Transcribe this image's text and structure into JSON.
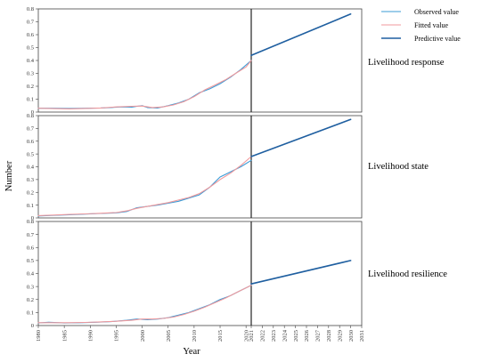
{
  "chart_data": {
    "type": "line",
    "xlabel": "Year",
    "ylabel": "Number",
    "ylim": [
      0,
      0.8
    ],
    "yticks": [
      "0",
      "0.1",
      "0.2",
      "0.3",
      "0.4",
      "0.5",
      "0.6",
      "0.7",
      "0.8"
    ],
    "xticks": [
      "1980",
      "1985",
      "1990",
      "1995",
      "2000",
      "2005",
      "2010",
      "2015",
      "2020",
      "2021",
      "2022",
      "2023",
      "2024",
      "2025",
      "2026",
      "2027",
      "2028",
      "2029",
      "2030",
      "2031"
    ],
    "legend": [
      "Observed value",
      "Fitted value",
      "Predictive value"
    ],
    "colors": {
      "observed": "#3b9bd6",
      "fitted": "#f0999c",
      "predictive": "#1f5fa0"
    },
    "panels": [
      {
        "label": "Livelihood response",
        "observed": {
          "x": [
            1980,
            1983,
            1986,
            1989,
            1992,
            1994,
            1996,
            1998,
            1999,
            2000,
            2001,
            2003,
            2005,
            2007,
            2009,
            2011,
            2013,
            2015,
            2017,
            2019,
            2021
          ],
          "y": [
            0.03,
            0.03,
            0.028,
            0.03,
            0.032,
            0.035,
            0.04,
            0.038,
            0.045,
            0.05,
            0.035,
            0.032,
            0.05,
            0.07,
            0.1,
            0.15,
            0.18,
            0.22,
            0.27,
            0.33,
            0.4
          ]
        },
        "fitted": {
          "x": [
            1980,
            1983,
            1986,
            1989,
            1992,
            1995,
            1998,
            2000,
            2002,
            2004,
            2006,
            2008,
            2010,
            2012,
            2014,
            2016,
            2018,
            2020,
            2021
          ],
          "y": [
            0.03,
            0.027,
            0.025,
            0.028,
            0.032,
            0.04,
            0.045,
            0.047,
            0.035,
            0.04,
            0.055,
            0.08,
            0.12,
            0.17,
            0.21,
            0.25,
            0.3,
            0.35,
            0.4
          ]
        },
        "predictive": {
          "x": [
            2021,
            2030
          ],
          "y": [
            0.44,
            0.76
          ]
        }
      },
      {
        "label": "Livelihood state",
        "observed": {
          "x": [
            1980,
            1983,
            1986,
            1989,
            1992,
            1995,
            1997,
            1999,
            2001,
            2003,
            2005,
            2007,
            2009,
            2011,
            2013,
            2015,
            2017,
            2019,
            2021
          ],
          "y": [
            0.015,
            0.02,
            0.025,
            0.03,
            0.035,
            0.04,
            0.05,
            0.08,
            0.09,
            0.1,
            0.115,
            0.13,
            0.155,
            0.18,
            0.24,
            0.32,
            0.36,
            0.4,
            0.45
          ]
        },
        "fitted": {
          "x": [
            1980,
            1983,
            1986,
            1989,
            1992,
            1995,
            1997,
            1999,
            2001,
            2003,
            2005,
            2007,
            2009,
            2011,
            2013,
            2015,
            2017,
            2019,
            2021
          ],
          "y": [
            0.018,
            0.022,
            0.027,
            0.031,
            0.036,
            0.042,
            0.055,
            0.075,
            0.09,
            0.105,
            0.12,
            0.14,
            0.16,
            0.19,
            0.24,
            0.3,
            0.35,
            0.41,
            0.48
          ]
        },
        "predictive": {
          "x": [
            2021,
            2030
          ],
          "y": [
            0.48,
            0.77
          ]
        }
      },
      {
        "label": "Livelihood resilience",
        "observed": {
          "x": [
            1980,
            1982,
            1985,
            1988,
            1991,
            1994,
            1997,
            1999,
            2001,
            2003,
            2005,
            2007,
            2009,
            2011,
            2013,
            2015,
            2017,
            2019,
            2021
          ],
          "y": [
            0.02,
            0.025,
            0.02,
            0.022,
            0.025,
            0.03,
            0.04,
            0.05,
            0.045,
            0.05,
            0.06,
            0.08,
            0.1,
            0.13,
            0.16,
            0.2,
            0.23,
            0.27,
            0.31
          ]
        },
        "fitted": {
          "x": [
            1980,
            1983,
            1986,
            1989,
            1992,
            1995,
            1998,
            2000,
            2002,
            2004,
            2006,
            2008,
            2010,
            2012,
            2014,
            2016,
            2018,
            2020,
            2021
          ],
          "y": [
            0.022,
            0.022,
            0.022,
            0.024,
            0.028,
            0.033,
            0.04,
            0.05,
            0.05,
            0.055,
            0.065,
            0.085,
            0.11,
            0.14,
            0.175,
            0.21,
            0.25,
            0.29,
            0.31
          ]
        },
        "predictive": {
          "x": [
            2021,
            2030
          ],
          "y": [
            0.32,
            0.5
          ]
        }
      }
    ]
  }
}
